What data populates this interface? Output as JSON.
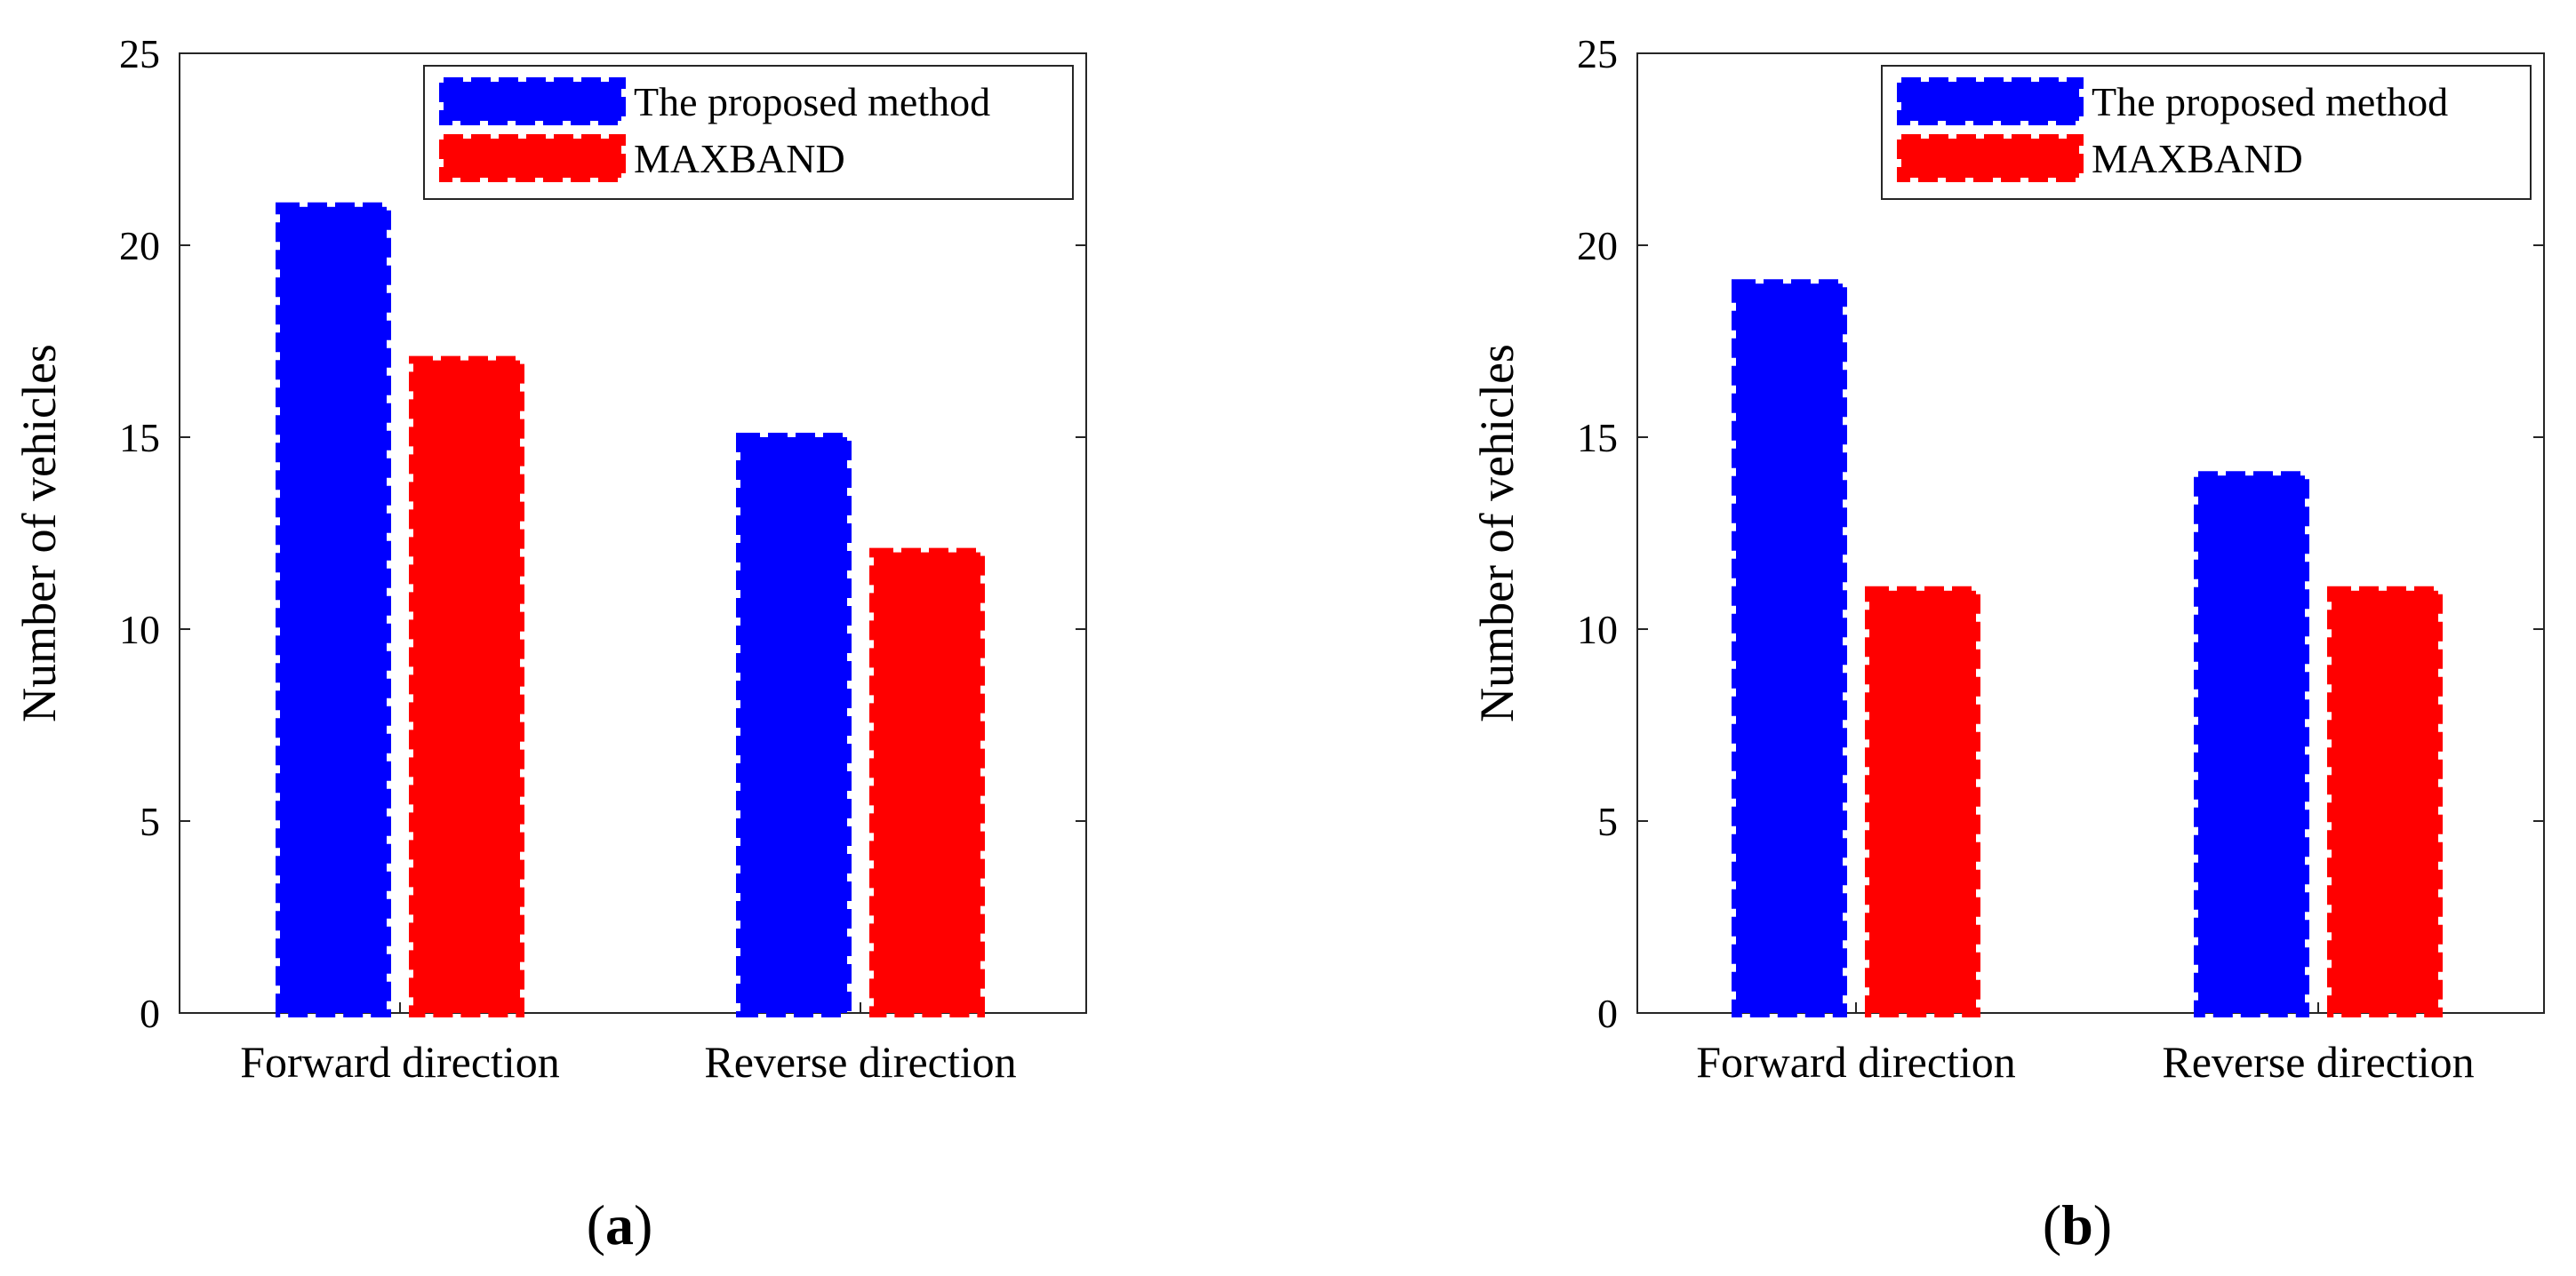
{
  "figure": {
    "panels": [
      {
        "panel_label": "a"
      },
      {
        "panel_label": "b"
      }
    ]
  },
  "chart_data": [
    {
      "type": "bar",
      "categories": [
        "Forward direction",
        "Reverse direction"
      ],
      "series": [
        {
          "name": "The proposed method",
          "color": "#0000FF",
          "values": [
            21,
            15
          ]
        },
        {
          "name": "MAXBAND",
          "color": "#FF0000",
          "values": [
            17,
            12
          ]
        }
      ],
      "ylabel": "Number of vehicles",
      "xlabel": "",
      "ylim": [
        0,
        25
      ],
      "yticks": [
        0,
        5,
        10,
        15,
        20,
        25
      ],
      "legend": "top-right",
      "grid": false
    },
    {
      "type": "bar",
      "categories": [
        "Forward direction",
        "Reverse direction"
      ],
      "series": [
        {
          "name": "The proposed method",
          "color": "#0000FF",
          "values": [
            19,
            14
          ]
        },
        {
          "name": "MAXBAND",
          "color": "#FF0000",
          "values": [
            11,
            11
          ]
        }
      ],
      "ylabel": "Number of vehicles",
      "xlabel": "",
      "ylim": [
        0,
        25
      ],
      "yticks": [
        0,
        5,
        10,
        15,
        20,
        25
      ],
      "legend": "top-right",
      "grid": false
    }
  ]
}
